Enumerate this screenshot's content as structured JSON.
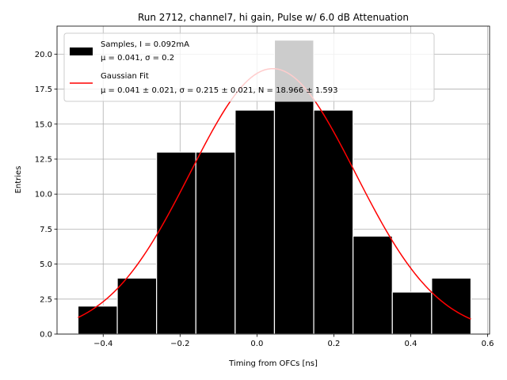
{
  "chart_data": {
    "type": "bar",
    "title": "Run 2712, channel7, hi gain, Pulse w/ 6.0 dB Attenuation",
    "xlabel": "Timing from OFCs [ns]",
    "ylabel": "Entries",
    "xlim": [
      -0.52,
      0.605
    ],
    "ylim": [
      0,
      22
    ],
    "xticks": [
      -0.4,
      -0.2,
      0.0,
      0.2,
      0.4,
      0.6
    ],
    "xtick_labels": [
      "−0.4",
      "−0.2",
      "0.0",
      "0.2",
      "0.4",
      "0.6"
    ],
    "yticks": [
      0,
      2.5,
      5,
      7.5,
      10,
      12.5,
      15,
      17.5,
      20
    ],
    "ytick_labels": [
      "0.0",
      "2.5",
      "5.0",
      "7.5",
      "10.0",
      "12.5",
      "15.0",
      "17.5",
      "20.0"
    ],
    "grid": true,
    "legend_placement": "top-left",
    "bins": [
      {
        "x0": -0.4655,
        "x1": -0.3633,
        "value": 2
      },
      {
        "x0": -0.3633,
        "x1": -0.2611,
        "value": 4
      },
      {
        "x0": -0.2611,
        "x1": -0.1589,
        "value": 13
      },
      {
        "x0": -0.1589,
        "x1": -0.0567,
        "value": 13
      },
      {
        "x0": -0.0567,
        "x1": 0.0455,
        "value": 16
      },
      {
        "x0": 0.0455,
        "x1": 0.1477,
        "value": 21
      },
      {
        "x0": 0.1477,
        "x1": 0.2499,
        "value": 16
      },
      {
        "x0": 0.2499,
        "x1": 0.3521,
        "value": 7
      },
      {
        "x0": 0.3521,
        "x1": 0.4543,
        "value": 3
      },
      {
        "x0": 0.4543,
        "x1": 0.5565,
        "value": 4
      }
    ],
    "fit": {
      "mu": 0.041,
      "sigma": 0.215,
      "N": 18.966,
      "x_range": [
        -0.4655,
        0.5565
      ]
    },
    "legend": {
      "samples": {
        "line1": "Samples, I = 0.092mA",
        "line2": "μ = 0.041, σ = 0.2"
      },
      "fit": {
        "line1": "Gaussian Fit",
        "line2": "μ = 0.041 ± 0.021, σ = 0.215 ± 0.021, N = 18.966 ± 1.593"
      }
    },
    "colors": {
      "bar": "#000000",
      "bar_edge": "#ffffff",
      "fit": "#ff0000",
      "grid": "#b0b0b0"
    }
  }
}
